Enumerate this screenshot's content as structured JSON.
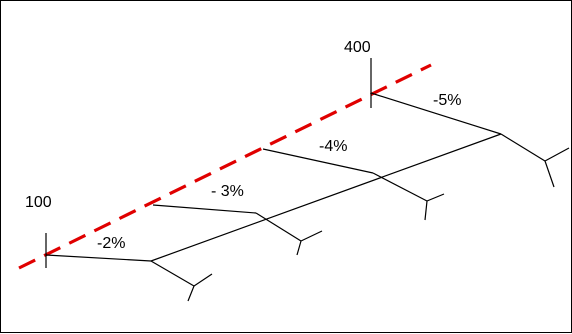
{
  "diagram": {
    "station_labels": {
      "start": "100",
      "end": "400"
    },
    "slope_labels": [
      "-2%",
      "- 3%",
      "-4%",
      "-5%"
    ],
    "colors": {
      "line": "#000000",
      "dashed_alignment": "#e00000",
      "background": "#ffffff"
    }
  }
}
